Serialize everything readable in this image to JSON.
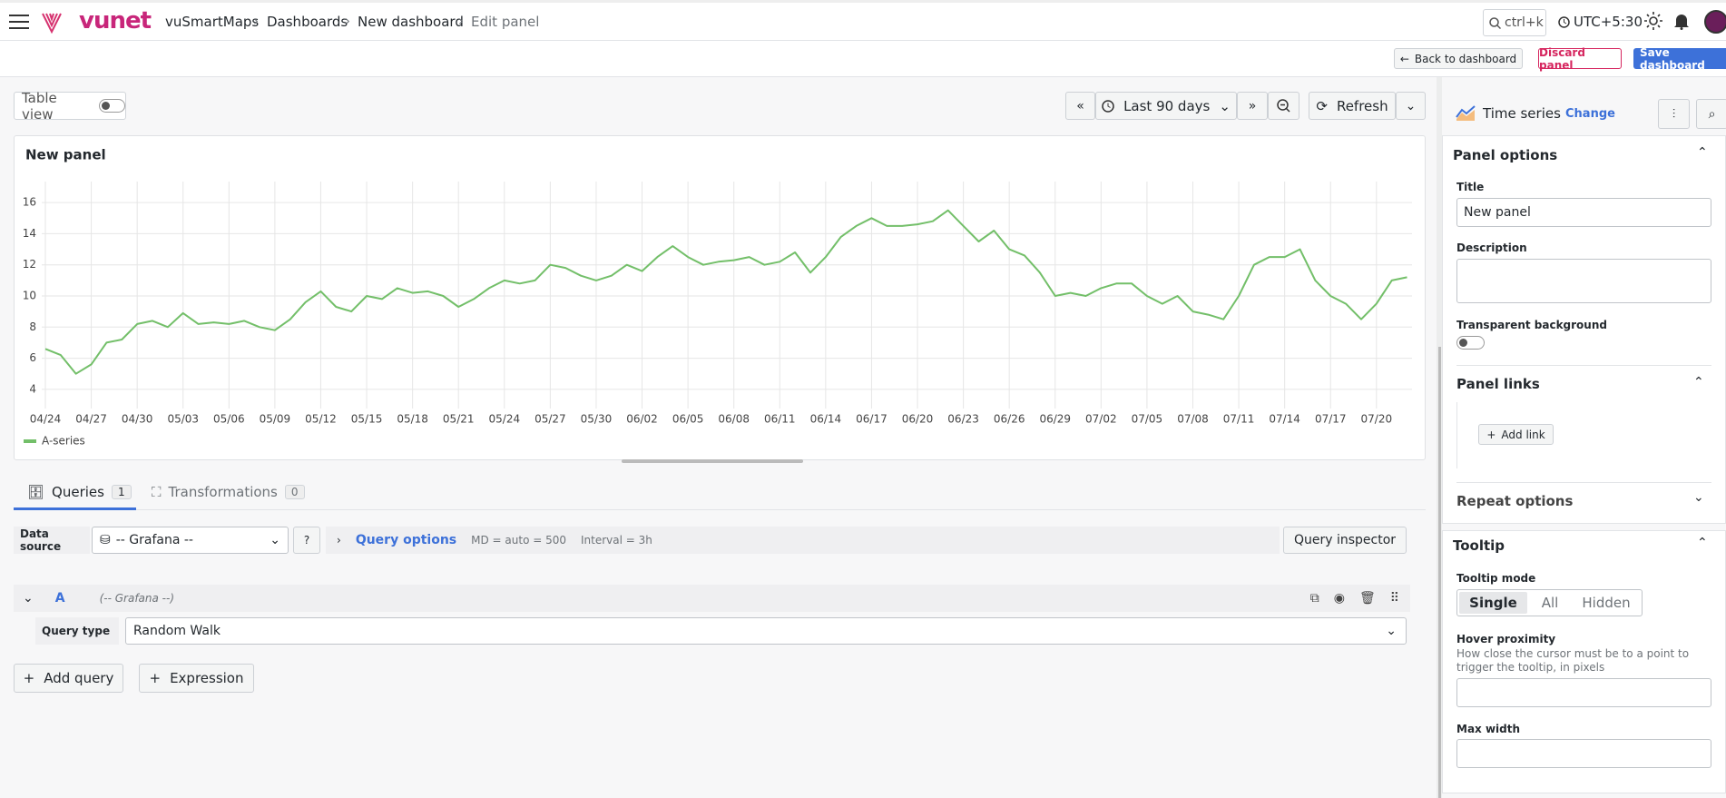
{
  "header": {
    "brand": "vunet",
    "breadcrumbs": [
      "vuSmartMaps",
      "Dashboards",
      "New dashboard",
      "Edit panel"
    ],
    "search": "ctrl+k",
    "timezone": "UTC+5:30"
  },
  "toolbar": {
    "back": "Back to dashboard",
    "discard": "Discard panel",
    "save": "Save dashboard"
  },
  "controls": {
    "table_view": "Table view",
    "time_range": "Last 90 days",
    "refresh": "Refresh"
  },
  "chart_data": {
    "type": "line",
    "title": "New panel",
    "categories": [
      "04/24",
      null,
      null,
      "04/27",
      null,
      null,
      "04/30",
      null,
      null,
      "05/03",
      null,
      null,
      "05/06",
      null,
      null,
      "05/09",
      null,
      null,
      "05/12",
      null,
      null,
      "05/15",
      null,
      null,
      "05/18",
      null,
      null,
      "05/21",
      null,
      null,
      "05/24",
      null,
      null,
      "05/27",
      null,
      null,
      "05/30",
      null,
      null,
      "06/02",
      null,
      null,
      "06/05",
      null,
      null,
      "06/08",
      null,
      null,
      "06/11",
      null,
      null,
      "06/14",
      null,
      null,
      "06/17",
      null,
      null,
      "06/20",
      null,
      null,
      "06/23",
      null,
      null,
      "06/26",
      null,
      null,
      "06/29",
      null,
      null,
      "07/02",
      null,
      null,
      "07/05",
      null,
      null,
      "07/08",
      null,
      null,
      "07/11",
      null,
      null,
      "07/14",
      null,
      null,
      "07/17",
      null,
      null,
      "07/20",
      null,
      null
    ],
    "series": [
      {
        "name": "A-series",
        "color": "#73bf69",
        "values": [
          6.6,
          6.2,
          5.0,
          5.6,
          7.0,
          7.2,
          8.2,
          8.4,
          8.0,
          8.9,
          8.2,
          8.3,
          8.2,
          8.4,
          8.0,
          7.8,
          8.5,
          9.6,
          10.3,
          9.3,
          9.0,
          10.0,
          9.8,
          10.5,
          10.2,
          10.3,
          10.0,
          9.3,
          9.8,
          10.5,
          11.0,
          10.8,
          11.0,
          12.0,
          11.8,
          11.3,
          11.0,
          11.3,
          12.0,
          11.6,
          12.5,
          13.2,
          12.5,
          12.0,
          12.2,
          12.3,
          12.5,
          12.0,
          12.2,
          12.8,
          11.5,
          12.5,
          13.8,
          14.5,
          15.0,
          14.5,
          14.5,
          14.6,
          14.8,
          15.5,
          14.5,
          13.5,
          14.2,
          13.0,
          12.6,
          11.5,
          10.0,
          10.2,
          10.0,
          10.5,
          10.8,
          10.8,
          10.0,
          9.5,
          10.0,
          9.0,
          8.8,
          8.5,
          10.0,
          12.0,
          12.5,
          12.5,
          13.0,
          11.0,
          10.0,
          9.5,
          8.5,
          9.5,
          11.0,
          11.2
        ]
      }
    ],
    "ylim": [
      3,
      17
    ],
    "yticks": [
      4,
      6,
      8,
      10,
      12,
      14,
      16
    ],
    "grid": true,
    "legend": "bottom-left"
  },
  "tabs": {
    "queries": {
      "label": "Queries",
      "count": 1
    },
    "transformations": {
      "label": "Transformations",
      "count": 0
    }
  },
  "query_bar": {
    "data_source_label": "Data source",
    "data_source": "-- Grafana --",
    "query_options": "Query options",
    "md": "MD = auto = 500",
    "interval": "Interval = 3h",
    "inspector": "Query inspector"
  },
  "query": {
    "ref": "A",
    "source": "(-- Grafana --)",
    "type_label": "Query type",
    "type_value": "Random Walk"
  },
  "buttons": {
    "add_query": "Add query",
    "expression": "Expression"
  },
  "sidebar": {
    "viz": "Time series",
    "change": "Change",
    "panel_options": "Panel options",
    "title_label": "Title",
    "title_value": "New panel",
    "description": "Description",
    "transparent": "Transparent background",
    "panel_links": "Panel links",
    "add_link": "Add link",
    "repeat": "Repeat options",
    "tooltip": "Tooltip",
    "tooltip_mode": "Tooltip mode",
    "modes": [
      "Single",
      "All",
      "Hidden"
    ],
    "hover": "Hover proximity",
    "hover_desc": "How close the cursor must be to a point to trigger the tooltip, in pixels",
    "max_width": "Max width"
  }
}
